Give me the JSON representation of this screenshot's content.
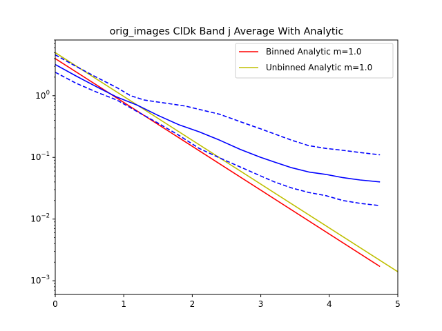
{
  "chart_data": {
    "type": "line",
    "title": "orig_images ClDk Band j Average With Analytic",
    "xlabel": "",
    "ylabel": "",
    "xlim": [
      0,
      5
    ],
    "ylim": [
      0.0006,
      8
    ],
    "yscale": "log",
    "grid": false,
    "legend_position": "top-right",
    "x_ticks": [
      0,
      1,
      2,
      3,
      4,
      5
    ],
    "x_tick_labels": [
      "0",
      "1",
      "2",
      "3",
      "4",
      "5"
    ],
    "y_ticks": [
      0.001,
      0.01,
      0.1,
      1
    ],
    "y_tick_labels": [
      {
        "base": "10",
        "exp": "−3"
      },
      {
        "base": "10",
        "exp": "−2"
      },
      {
        "base": "10",
        "exp": "−1"
      },
      {
        "base": "10",
        "exp": "0"
      }
    ],
    "series": [
      {
        "name": "Binned Analytic m=1.0",
        "color": "#ff0000",
        "style": "solid",
        "in_legend": true,
        "x": [
          0,
          4.74
        ],
        "y": [
          4.0,
          0.0017
        ]
      },
      {
        "name": "Unbinned Analytic m=1.0",
        "color": "#bfbf00",
        "style": "solid",
        "in_legend": true,
        "x": [
          0,
          5
        ],
        "y": [
          5.0,
          0.0014
        ]
      },
      {
        "name": "",
        "color": "#0000ff",
        "style": "solid",
        "in_legend": false,
        "x": [
          0,
          0.3,
          0.6,
          0.9,
          1.2,
          1.5,
          1.8,
          2.1,
          2.4,
          2.7,
          3.0,
          3.2,
          3.45,
          3.7,
          3.95,
          4.2,
          4.45,
          4.74
        ],
        "y": [
          3.2,
          2.1,
          1.4,
          0.95,
          0.7,
          0.48,
          0.34,
          0.26,
          0.19,
          0.135,
          0.1,
          0.084,
          0.068,
          0.058,
          0.053,
          0.047,
          0.043,
          0.04
        ]
      },
      {
        "name": "",
        "color": "#0000ff",
        "style": "dashed",
        "in_legend": false,
        "x": [
          0,
          0.3,
          0.6,
          0.9,
          1.1,
          1.3,
          1.6,
          1.9,
          2.1,
          2.4,
          2.7,
          3.0,
          3.2,
          3.45,
          3.7,
          3.95,
          4.2,
          4.45,
          4.74
        ],
        "y": [
          4.6,
          3.0,
          2.0,
          1.35,
          1.0,
          0.85,
          0.76,
          0.68,
          0.6,
          0.5,
          0.38,
          0.29,
          0.24,
          0.19,
          0.155,
          0.14,
          0.13,
          0.12,
          0.11
        ]
      },
      {
        "name": "",
        "color": "#0000ff",
        "style": "dashed",
        "in_legend": false,
        "x": [
          0,
          0.3,
          0.6,
          0.9,
          1.2,
          1.5,
          1.8,
          2.1,
          2.4,
          2.7,
          3.0,
          3.2,
          3.45,
          3.7,
          3.95,
          4.2,
          4.45,
          4.74
        ],
        "y": [
          2.4,
          1.6,
          1.15,
          0.85,
          0.55,
          0.36,
          0.23,
          0.14,
          0.098,
          0.07,
          0.05,
          0.04,
          0.032,
          0.027,
          0.024,
          0.02,
          0.018,
          0.0165
        ]
      }
    ]
  }
}
